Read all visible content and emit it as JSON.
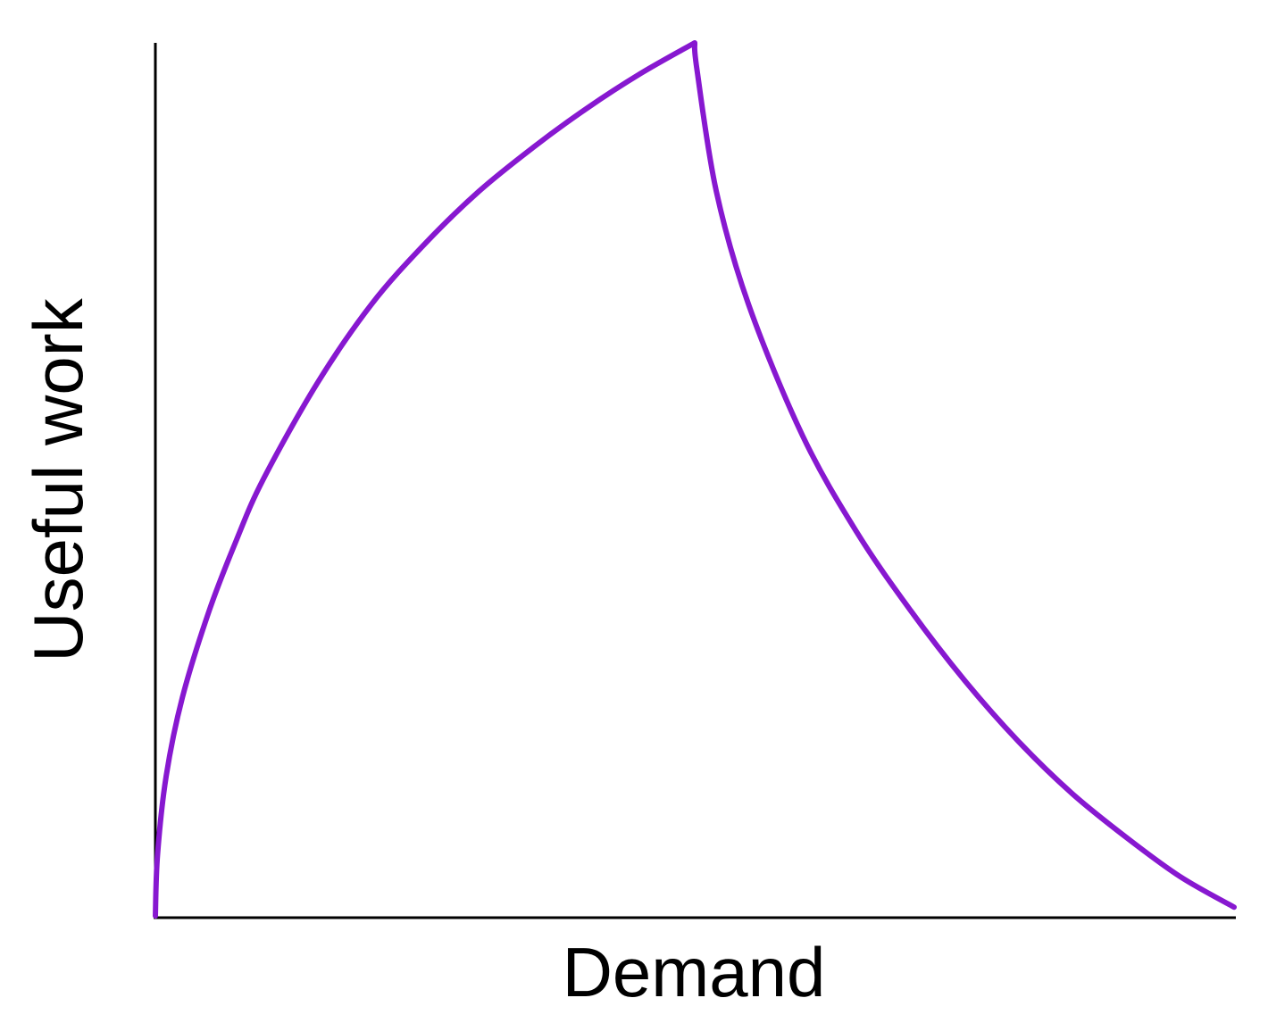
{
  "chart_data": {
    "type": "line",
    "title": "",
    "xlabel": "Demand",
    "ylabel": "Useful work",
    "xlim": [
      0,
      1
    ],
    "ylim": [
      0,
      1
    ],
    "grid": false,
    "ticks": false,
    "colors": {
      "line": "#8718d0",
      "axis": "#000000"
    },
    "series": [
      {
        "x": [
          0,
          0.002,
          0.01,
          0.025,
          0.05,
          0.075,
          0.1,
          0.15,
          0.2,
          0.25,
          0.3,
          0.35,
          0.4,
          0.45,
          0.5,
          0.502,
          0.52,
          0.55,
          0.6,
          0.65,
          0.7,
          0.75,
          0.8,
          0.85,
          0.9,
          0.95,
          1.0
        ],
        "y": [
          0,
          0.07,
          0.16,
          0.25,
          0.35,
          0.43,
          0.5,
          0.61,
          0.7,
          0.77,
          0.83,
          0.88,
          0.925,
          0.965,
          1.0,
          0.97,
          0.83,
          0.7,
          0.55,
          0.44,
          0.35,
          0.27,
          0.2,
          0.14,
          0.09,
          0.045,
          0.01
        ]
      }
    ]
  }
}
